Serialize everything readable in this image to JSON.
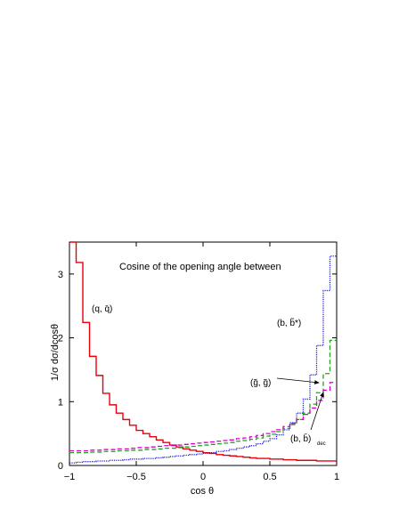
{
  "chart_data": {
    "type": "line",
    "title": "Cosine of the opening angle between",
    "xlabel": "cos θ",
    "ylabel": "1/σ dσ/dcosθ",
    "xlim": [
      -1,
      1
    ],
    "ylim": [
      0,
      3.5
    ],
    "xticks": [
      -1,
      -0.5,
      0,
      0.5,
      1
    ],
    "xtick_labels": [
      "−1",
      "−0.5",
      "0",
      "0.5",
      "1"
    ],
    "yticks": [
      0,
      1,
      2,
      3
    ],
    "ytick_labels": [
      "0",
      "1",
      "2",
      "3"
    ],
    "grid": false,
    "legend": "none",
    "x": [
      -0.975,
      -0.925,
      -0.875,
      -0.825,
      -0.775,
      -0.725,
      -0.675,
      -0.625,
      -0.575,
      -0.525,
      -0.475,
      -0.425,
      -0.375,
      -0.325,
      -0.275,
      -0.225,
      -0.175,
      -0.125,
      -0.075,
      -0.025,
      0.025,
      0.075,
      0.125,
      0.175,
      0.225,
      0.275,
      0.325,
      0.375,
      0.425,
      0.475,
      0.525,
      0.575,
      0.625,
      0.675,
      0.725,
      0.775,
      0.825,
      0.875,
      0.925,
      0.975
    ],
    "series": [
      {
        "name": "(q, q̄)",
        "color": "#e8000b",
        "style": "solid",
        "values": [
          3.5,
          3.18,
          2.24,
          1.71,
          1.41,
          1.13,
          0.95,
          0.82,
          0.72,
          0.63,
          0.55,
          0.5,
          0.45,
          0.4,
          0.36,
          0.32,
          0.29,
          0.26,
          0.24,
          0.22,
          0.2,
          0.19,
          0.17,
          0.16,
          0.15,
          0.14,
          0.13,
          0.12,
          0.11,
          0.11,
          0.1,
          0.1,
          0.09,
          0.09,
          0.08,
          0.08,
          0.08,
          0.07,
          0.07,
          0.07
        ]
      },
      {
        "name": "(b, b̃*)",
        "color": "#1c1cd8",
        "style": "dotted",
        "values": [
          0.04,
          0.05,
          0.06,
          0.06,
          0.07,
          0.07,
          0.08,
          0.08,
          0.09,
          0.1,
          0.1,
          0.11,
          0.11,
          0.12,
          0.13,
          0.14,
          0.15,
          0.16,
          0.17,
          0.18,
          0.19,
          0.2,
          0.22,
          0.23,
          0.25,
          0.27,
          0.29,
          0.31,
          0.34,
          0.38,
          0.42,
          0.48,
          0.56,
          0.67,
          0.82,
          1.04,
          1.42,
          1.88,
          2.74,
          3.28
        ]
      },
      {
        "name": "(g̃, g̃)",
        "color": "#22a022",
        "style": "dashed",
        "values": [
          0.2,
          0.2,
          0.2,
          0.21,
          0.21,
          0.22,
          0.22,
          0.23,
          0.23,
          0.24,
          0.24,
          0.25,
          0.25,
          0.26,
          0.27,
          0.27,
          0.28,
          0.29,
          0.3,
          0.31,
          0.32,
          0.33,
          0.34,
          0.35,
          0.36,
          0.38,
          0.39,
          0.41,
          0.43,
          0.46,
          0.49,
          0.53,
          0.58,
          0.64,
          0.72,
          0.82,
          0.96,
          1.14,
          1.44,
          1.96
        ]
      },
      {
        "name": "(b, b̄)dec",
        "color": "#d400c8",
        "style": "dashed",
        "values": [
          0.23,
          0.23,
          0.23,
          0.24,
          0.24,
          0.25,
          0.25,
          0.26,
          0.26,
          0.27,
          0.28,
          0.28,
          0.29,
          0.3,
          0.31,
          0.31,
          0.32,
          0.33,
          0.34,
          0.35,
          0.36,
          0.37,
          0.38,
          0.39,
          0.4,
          0.42,
          0.43,
          0.45,
          0.47,
          0.5,
          0.53,
          0.56,
          0.61,
          0.66,
          0.72,
          0.8,
          0.9,
          1.02,
          1.18,
          1.3
        ]
      }
    ],
    "annotations": [
      {
        "text": "(q, q̄)",
        "for": "(q, q̄)"
      },
      {
        "text": "(b, b̃*)",
        "for": "(b, b̃*)"
      },
      {
        "text": "(g̃, g̃)",
        "for": "(g̃, g̃)"
      },
      {
        "text": "(b, b̄)",
        "sub": "dec",
        "for": "(b, b̄)dec"
      }
    ]
  }
}
